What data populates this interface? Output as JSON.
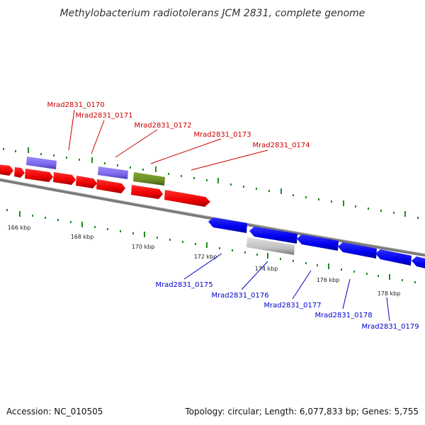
{
  "title": "Methylobacterium radiotolerans JCM 2831, complete genome",
  "footer": {
    "accession": "Accession: NC_010505",
    "info": "Topology: circular; Length: 6,077,833 bp; Genes: 5,755"
  },
  "scale": {
    "ticks": [
      "166 kbp",
      "168 kbp",
      "170 kbp",
      "172 kbp",
      "174 kbp",
      "176 kbp",
      "178 kbp"
    ]
  },
  "top_genes": {
    "labels": [
      "Mrad2831_0170",
      "Mrad2831_0171",
      "Mrad2831_0172",
      "Mrad2831_0173",
      "Mrad2831_0174"
    ]
  },
  "bottom_genes": {
    "labels": [
      "Mrad2831_0175",
      "Mrad2831_0176",
      "Mrad2831_0177",
      "Mrad2831_0178",
      "Mrad2831_0179"
    ]
  },
  "colors": {
    "forward_cds": "#ff0000",
    "reverse_cds": "#0000ff",
    "forward_misc": "#7b68ee",
    "forward_other": "#6b8e23",
    "reverse_misc": "#c0c0c0",
    "backbone": "#808080",
    "tick": "#228b22",
    "label_top": "#cc0000",
    "label_bottom": "#0000cc"
  }
}
